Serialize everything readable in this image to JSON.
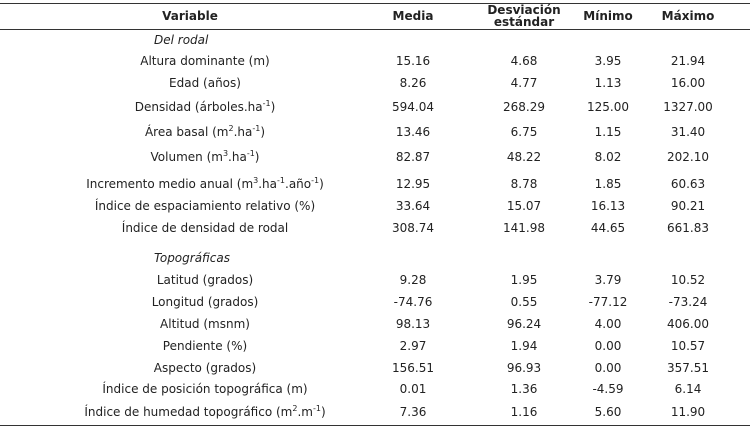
{
  "table": {
    "columns": [
      "Variable",
      "Media",
      "Desviación estándar",
      "Mínimo",
      "Máximo"
    ],
    "sections": [
      {
        "heading": "Del rodal",
        "rows": [
          {
            "variable": [
              "Altura dominante (m)"
            ],
            "values": [
              "15.16",
              "4.68",
              "3.95",
              "21.94"
            ]
          },
          {
            "variable": [
              "Edad (años)"
            ],
            "values": [
              "8.26",
              "4.77",
              "1.13",
              "16.00"
            ]
          },
          {
            "variable": [
              "Densidad (árboles.ha",
              "-1",
              ")"
            ],
            "values": [
              "594.04",
              "268.29",
              "125.00",
              "1327.00"
            ]
          },
          {
            "variable": [
              "Área basal (m",
              "2",
              ".ha",
              "-1",
              ")"
            ],
            "values": [
              "13.46",
              "6.75",
              "1.15",
              "31.40"
            ]
          },
          {
            "variable": [
              "Volumen (m",
              "3",
              ".ha",
              "-1",
              ")"
            ],
            "values": [
              "82.87",
              "48.22",
              "8.02",
              "202.10"
            ]
          },
          {
            "variable": [
              "Incremento medio anual (m",
              "3",
              ".ha",
              "-1",
              ".año",
              "-1",
              ")"
            ],
            "values": [
              "12.95",
              "8.78",
              "1.85",
              "60.63"
            ]
          },
          {
            "variable": [
              "Índice de espaciamiento relativo (%)"
            ],
            "values": [
              "33.64",
              "15.07",
              "16.13",
              "90.21"
            ]
          },
          {
            "variable": [
              "Índice de densidad de rodal"
            ],
            "values": [
              "308.74",
              "141.98",
              "44.65",
              "661.83"
            ]
          }
        ]
      },
      {
        "heading": "Topográficas",
        "rows": [
          {
            "variable": [
              "Latitud (grados)"
            ],
            "values": [
              "9.28",
              "1.95",
              "3.79",
              "10.52"
            ]
          },
          {
            "variable": [
              "Longitud (grados)"
            ],
            "values": [
              "-74.76",
              "0.55",
              "-77.12",
              "-73.24"
            ]
          },
          {
            "variable": [
              "Altitud (msnm)"
            ],
            "values": [
              "98.13",
              "96.24",
              "4.00",
              "406.00"
            ]
          },
          {
            "variable": [
              "Pendiente (%)"
            ],
            "values": [
              "2.97",
              "1.94",
              "0.00",
              "10.57"
            ]
          },
          {
            "variable": [
              "Aspecto (grados)"
            ],
            "values": [
              "156.51",
              "96.93",
              "0.00",
              "357.51"
            ]
          },
          {
            "variable": [
              "Índice de posición topográfica (m)"
            ],
            "values": [
              "0.01",
              "1.36",
              "-4.59",
              "6.14"
            ]
          },
          {
            "variable": [
              "Índice de humedad topográfico (m",
              "2",
              ".m",
              "-1",
              ")"
            ],
            "values": [
              "7.36",
              "1.16",
              "5.60",
              "11.90"
            ]
          }
        ]
      }
    ]
  }
}
